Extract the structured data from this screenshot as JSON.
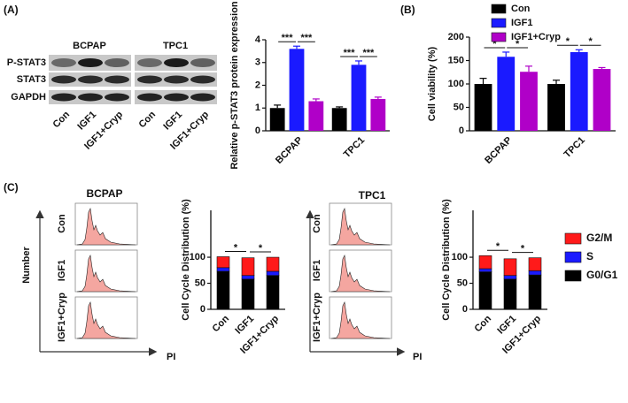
{
  "labels": [
    "(A)",
    "(B)",
    "(C)"
  ],
  "blot": {
    "groups": [
      "BCPAP",
      "TPC1"
    ],
    "rows": [
      "P-STAT3",
      "STAT3",
      "GAPDH"
    ],
    "lanes": [
      "Con",
      "IGF1",
      "IGF1+Cryp"
    ]
  },
  "flow": {
    "y_label": "Number",
    "x_label": "PI",
    "rows": [
      "Con",
      "IGF1",
      "IGF1+Cryp"
    ]
  },
  "chart_data": [
    {
      "type": "bar",
      "y_label": "Relative p-STAT3 protein expression",
      "categories": [
        "BCPAP",
        "TPC1"
      ],
      "series": [
        {
          "name": "Con",
          "color": "#000000",
          "values": [
            1.0,
            1.0
          ],
          "errors": [
            0.13,
            0.05
          ]
        },
        {
          "name": "IGF1",
          "color": "#1a1aff",
          "values": [
            3.6,
            2.9
          ],
          "errors": [
            0.12,
            0.17
          ]
        },
        {
          "name": "IGF1+Cryp",
          "color": "#b000c8",
          "values": [
            1.3,
            1.4
          ],
          "errors": [
            0.1,
            0.08
          ]
        }
      ],
      "ylim": [
        0,
        4
      ],
      "yticks": [
        0,
        1,
        2,
        3,
        4
      ],
      "annotations": [
        "***",
        "***",
        "***",
        "***"
      ]
    },
    {
      "type": "bar",
      "y_label": "Cell viability (%)",
      "categories": [
        "BCPAP",
        "TPC1"
      ],
      "series": [
        {
          "name": "Con",
          "color": "#000000",
          "values": [
            100,
            100
          ],
          "errors": [
            12,
            8
          ]
        },
        {
          "name": "IGF1",
          "color": "#1a1aff",
          "values": [
            158,
            168
          ],
          "errors": [
            10,
            5
          ]
        },
        {
          "name": "IGF1+Cryp",
          "color": "#b000c8",
          "values": [
            126,
            132
          ],
          "errors": [
            12,
            3
          ]
        }
      ],
      "ylim": [
        0,
        200
      ],
      "yticks": [
        0,
        50,
        100,
        150,
        200
      ],
      "annotations": [
        "*",
        "*",
        "*",
        "*"
      ],
      "legend": "top"
    },
    {
      "type": "bar",
      "stacked": true,
      "title": "BCPAP",
      "y_label": "Cell Cycle Distribution (%)",
      "categories": [
        "Con",
        "IGF1",
        "IGF1+Cryp"
      ],
      "series": [
        {
          "name": "G0/G1",
          "color": "#000000",
          "values": [
            73,
            58,
            65
          ]
        },
        {
          "name": "S",
          "color": "#1a1aff",
          "values": [
            7,
            7,
            8
          ]
        },
        {
          "name": "G2/M",
          "color": "#ff1a1a",
          "values": [
            21,
            34,
            27
          ]
        }
      ],
      "ylim": [
        0,
        190
      ],
      "yticks": [
        0,
        50,
        100
      ],
      "annotations": [
        "*",
        "*"
      ]
    },
    {
      "type": "bar",
      "stacked": true,
      "title": "TPC1",
      "y_label": "Cell Cycle Distribution (%)",
      "categories": [
        "Con",
        "IGF1",
        "IGF1+Cryp"
      ],
      "series": [
        {
          "name": "G0/G1",
          "color": "#000000",
          "values": [
            72,
            58,
            66
          ]
        },
        {
          "name": "S",
          "color": "#1a1aff",
          "values": [
            6,
            7,
            8
          ]
        },
        {
          "name": "G2/M",
          "color": "#ff1a1a",
          "values": [
            25,
            32,
            25
          ]
        }
      ],
      "ylim": [
        0,
        190
      ],
      "yticks": [
        0,
        50,
        100
      ],
      "annotations": [
        "*",
        "*"
      ],
      "legend": "right"
    }
  ]
}
